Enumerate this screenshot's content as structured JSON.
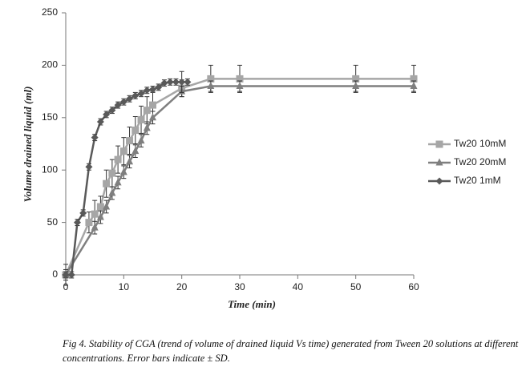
{
  "chart_data": {
    "type": "line",
    "x_label": "Time (min)",
    "y_label": "Volume drained liquid (ml)",
    "caption": "Fig 4. Stability of CGA (trend of volume of drained liquid Vs time) generated from Tween 20 solutions at different concentrations. Error bars indicate ± SD.",
    "xlim": [
      0,
      60
    ],
    "xticks": [
      0,
      10,
      20,
      30,
      40,
      50,
      60
    ],
    "ylim": [
      0,
      250
    ],
    "yticks": [
      0,
      50,
      100,
      150,
      200,
      250
    ],
    "grid": false,
    "legend": "right",
    "series": [
      {
        "name": "Tw20 10mM",
        "color": "#a6a6a6",
        "marker": "square",
        "x": [
          0,
          4,
          5,
          6,
          7,
          8,
          9,
          10,
          11,
          12,
          13,
          14,
          15,
          20,
          25,
          30,
          50,
          60
        ],
        "values": [
          0,
          50,
          58,
          65,
          87,
          97,
          110,
          118,
          128,
          138,
          148,
          157,
          162,
          178,
          187,
          187,
          187,
          187
        ],
        "errors": [
          10,
          10,
          13,
          10,
          13,
          13,
          13,
          13,
          13,
          13,
          13,
          13,
          13,
          8,
          13,
          13,
          13,
          13
        ]
      },
      {
        "name": "Tw20 20mM",
        "color": "#7f7f7f",
        "marker": "triangle",
        "x": [
          0,
          5,
          6,
          7,
          8,
          9,
          10,
          11,
          12,
          13,
          14,
          15,
          20,
          25,
          30,
          50,
          60
        ],
        "values": [
          0,
          45,
          55,
          65,
          78,
          88,
          98,
          108,
          118,
          128,
          140,
          150,
          175,
          180,
          180,
          180,
          180
        ],
        "errors": [
          5,
          6,
          6,
          6,
          6,
          6,
          6,
          6,
          6,
          6,
          6,
          6,
          5,
          5,
          5,
          5,
          5
        ]
      },
      {
        "name": "Tw20 1mM",
        "color": "#595959",
        "marker": "diamond",
        "x": [
          0,
          1,
          2,
          3,
          4,
          5,
          6,
          7,
          8,
          9,
          10,
          11,
          12,
          13,
          14,
          15,
          16,
          17,
          18,
          19,
          20,
          21
        ],
        "values": [
          0,
          0,
          50,
          59,
          103,
          131,
          146,
          153,
          157,
          162,
          165,
          168,
          171,
          173,
          176,
          177,
          179,
          183,
          184,
          184,
          184,
          184
        ],
        "errors": [
          3,
          3,
          3,
          3,
          3,
          3,
          3,
          3,
          3,
          3,
          3,
          3,
          3,
          3,
          3,
          3,
          3,
          3,
          3,
          3,
          10,
          3
        ]
      }
    ]
  }
}
